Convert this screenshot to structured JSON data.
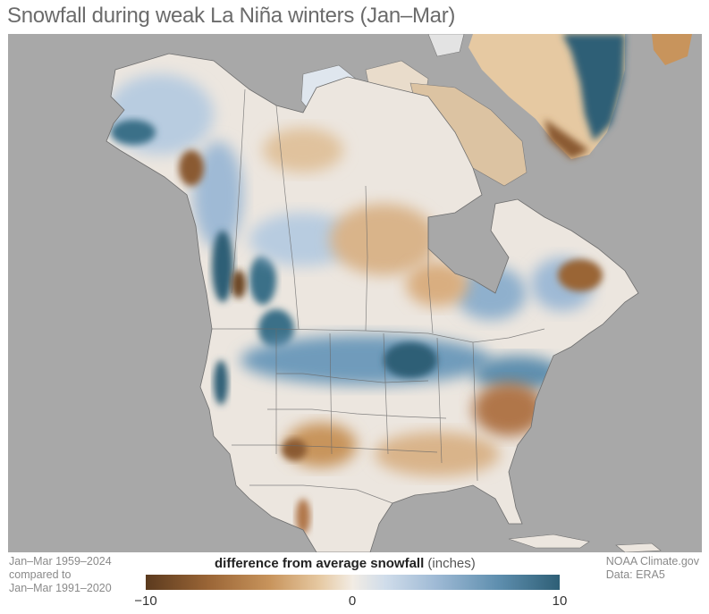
{
  "title": "Snowfall during weak La Niña winters (Jan–Mar)",
  "footer_left": {
    "line1": "Jan–Mar 1959–2024",
    "line2": "compared to",
    "line3": "Jan–Mar 1991–2020"
  },
  "footer_right": {
    "line1": "NOAA Climate.gov",
    "line2": "Data: ERA5"
  },
  "legend": {
    "title_bold": "difference from average snowfall",
    "title_unit": "(inches)",
    "min_label": "−10",
    "mid_label": "0",
    "max_label": "10",
    "range": [
      -10,
      10
    ],
    "colors": {
      "less_snow": "#5b3a1e",
      "neutral": "#f2ece4",
      "more_snow": "#2e5f76"
    }
  },
  "map": {
    "ocean_color": "#a8a8a8",
    "land_base": "#ece6df"
  }
}
